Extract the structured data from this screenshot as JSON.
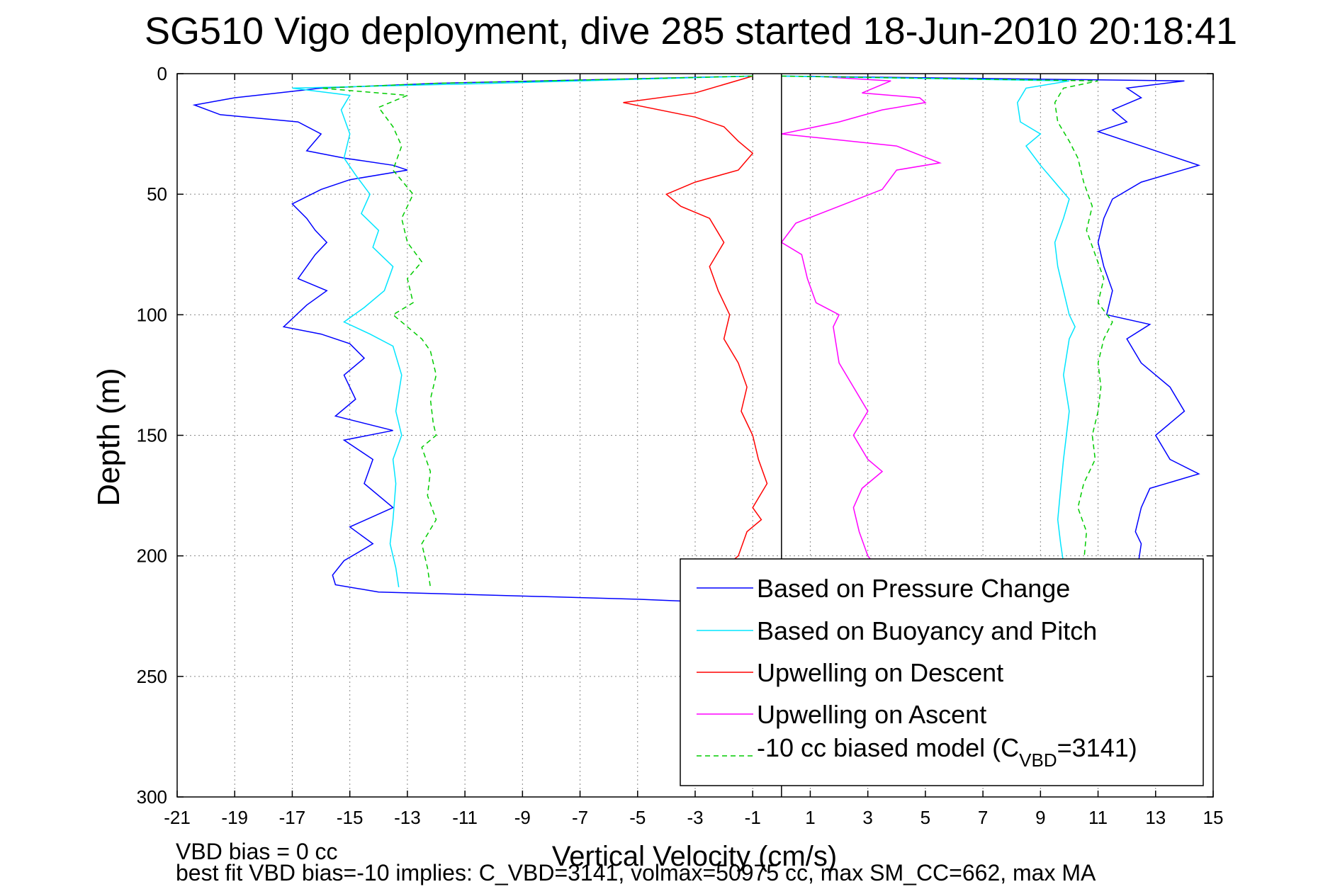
{
  "chart_data": {
    "type": "line",
    "title": "SG510 Vigo deployment, dive 285 started 18-Jun-2010 20:18:41",
    "xlabel": "Vertical Velocity (cm/s)",
    "ylabel": "Depth (m)",
    "xlim": [
      -21,
      15
    ],
    "ylim": [
      0,
      300
    ],
    "y_reversed": true,
    "grid": true,
    "legend_position": "bottom-right",
    "xticks": [
      -21,
      -19,
      -17,
      -15,
      -13,
      -11,
      -9,
      -7,
      -5,
      -3,
      -1,
      1,
      3,
      5,
      7,
      9,
      11,
      13,
      15
    ],
    "yticks": [
      0,
      50,
      100,
      150,
      200,
      250,
      300
    ],
    "vline_x": 0,
    "series": [
      {
        "name": "Based on Pressure Change",
        "color": "#0000ff",
        "dash": "solid",
        "points": [
          [
            -1,
            1
          ],
          [
            -12,
            4
          ],
          [
            -16,
            6
          ],
          [
            -19,
            10
          ],
          [
            -20.4,
            13
          ],
          [
            -19.5,
            17
          ],
          [
            -16.8,
            20
          ],
          [
            -16,
            25
          ],
          [
            -16.5,
            32
          ],
          [
            -15.2,
            35
          ],
          [
            -13.5,
            38
          ],
          [
            -13,
            40
          ],
          [
            -15,
            44
          ],
          [
            -16,
            48
          ],
          [
            -17,
            54
          ],
          [
            -16.5,
            60
          ],
          [
            -16.2,
            65
          ],
          [
            -15.8,
            70
          ],
          [
            -16.2,
            75
          ],
          [
            -16.8,
            85
          ],
          [
            -15.8,
            90
          ],
          [
            -16.5,
            96
          ],
          [
            -17.3,
            105
          ],
          [
            -16,
            108
          ],
          [
            -15,
            112
          ],
          [
            -14.5,
            118
          ],
          [
            -15.2,
            125
          ],
          [
            -14.8,
            135
          ],
          [
            -15.5,
            142
          ],
          [
            -13.5,
            148
          ],
          [
            -15.2,
            152
          ],
          [
            -14.2,
            160
          ],
          [
            -14.5,
            170
          ],
          [
            -13.5,
            180
          ],
          [
            -15,
            188
          ],
          [
            -14.2,
            195
          ],
          [
            -15.2,
            202
          ],
          [
            -15.6,
            208
          ],
          [
            -15.5,
            212
          ],
          [
            -14,
            215
          ],
          [
            -5,
            218
          ],
          [
            -3,
            219
          ]
        ]
      },
      {
        "name": "Based on Buoyancy and Pitch",
        "color": "#00e5ff",
        "dash": "solid",
        "points": [
          [
            -1,
            1
          ],
          [
            -10,
            4
          ],
          [
            -17,
            6
          ],
          [
            -15,
            9
          ],
          [
            -15.3,
            15
          ],
          [
            -15,
            25
          ],
          [
            -15.2,
            35
          ],
          [
            -14.8,
            42
          ],
          [
            -14.3,
            50
          ],
          [
            -14.6,
            58
          ],
          [
            -14,
            65
          ],
          [
            -14.2,
            72
          ],
          [
            -13.5,
            80
          ],
          [
            -13.8,
            90
          ],
          [
            -14.5,
            97
          ],
          [
            -15.2,
            103
          ],
          [
            -14.3,
            108
          ],
          [
            -13.5,
            113
          ],
          [
            -13.2,
            125
          ],
          [
            -13.4,
            140
          ],
          [
            -13.2,
            150
          ],
          [
            -13.5,
            160
          ],
          [
            -13.4,
            170
          ],
          [
            -13.5,
            185
          ],
          [
            -13.6,
            195
          ],
          [
            -13.4,
            205
          ],
          [
            -13.3,
            213
          ]
        ]
      },
      {
        "name": "Upwelling on Descent",
        "color": "#ff0000",
        "dash": "solid",
        "points": [
          [
            -1,
            1
          ],
          [
            -3,
            8
          ],
          [
            -5.5,
            12
          ],
          [
            -3,
            18
          ],
          [
            -2,
            22
          ],
          [
            -1.5,
            28
          ],
          [
            -1,
            33
          ],
          [
            -1.5,
            40
          ],
          [
            -3,
            45
          ],
          [
            -4,
            50
          ],
          [
            -3.5,
            55
          ],
          [
            -2.5,
            60
          ],
          [
            -2,
            70
          ],
          [
            -2.5,
            80
          ],
          [
            -2.2,
            90
          ],
          [
            -1.8,
            100
          ],
          [
            -2,
            110
          ],
          [
            -1.5,
            120
          ],
          [
            -1.2,
            130
          ],
          [
            -1.4,
            140
          ],
          [
            -1,
            150
          ],
          [
            -0.8,
            160
          ],
          [
            -0.5,
            170
          ],
          [
            -1,
            180
          ],
          [
            -0.7,
            185
          ],
          [
            -1.2,
            190
          ],
          [
            -1.5,
            200
          ],
          [
            -2,
            205
          ]
        ]
      },
      {
        "name": "Upwelling on Ascent",
        "color": "#ff00ff",
        "dash": "solid",
        "points": [
          [
            1,
            1
          ],
          [
            3.8,
            3
          ],
          [
            2.8,
            8
          ],
          [
            4.8,
            10
          ],
          [
            5,
            12
          ],
          [
            3.5,
            15
          ],
          [
            2,
            20
          ],
          [
            0,
            25
          ],
          [
            4,
            30
          ],
          [
            5.5,
            37
          ],
          [
            4,
            40
          ],
          [
            3.5,
            48
          ],
          [
            2,
            55
          ],
          [
            0.5,
            62
          ],
          [
            0,
            70
          ],
          [
            0.7,
            75
          ],
          [
            0.9,
            85
          ],
          [
            1.2,
            95
          ],
          [
            2,
            100
          ],
          [
            1.8,
            105
          ],
          [
            2,
            120
          ],
          [
            2.5,
            130
          ],
          [
            3,
            140
          ],
          [
            2.5,
            150
          ],
          [
            3,
            160
          ],
          [
            3.5,
            165
          ],
          [
            2.8,
            172
          ],
          [
            2.5,
            180
          ],
          [
            2.7,
            190
          ],
          [
            3,
            200
          ],
          [
            3.2,
            203
          ]
        ]
      },
      {
        "name": "-10 cc biased model (C_VBD=3141)",
        "color": "#00cc00",
        "dash": "dashed",
        "points": [
          [
            -1,
            1
          ],
          [
            -12,
            4
          ],
          [
            -16,
            6
          ],
          [
            -13,
            9
          ],
          [
            -14,
            14
          ],
          [
            -13.5,
            22
          ],
          [
            -13.2,
            30
          ],
          [
            -13.5,
            40
          ],
          [
            -12.8,
            50
          ],
          [
            -13.2,
            60
          ],
          [
            -13,
            70
          ],
          [
            -12.5,
            78
          ],
          [
            -13,
            85
          ],
          [
            -12.8,
            95
          ],
          [
            -13.5,
            100
          ],
          [
            -13,
            105
          ],
          [
            -12.5,
            110
          ],
          [
            -12.2,
            115
          ],
          [
            -12,
            125
          ],
          [
            -12.2,
            135
          ],
          [
            -12.1,
            145
          ],
          [
            -12,
            150
          ],
          [
            -12.5,
            155
          ],
          [
            -12.2,
            165
          ],
          [
            -12.3,
            175
          ],
          [
            -12,
            185
          ],
          [
            -12.5,
            195
          ],
          [
            -12.3,
            205
          ],
          [
            -12.2,
            213
          ]
        ]
      },
      {
        "name": "",
        "color": "#0000ff",
        "dash": "solid",
        "points": [
          [
            0,
            1
          ],
          [
            14,
            3
          ],
          [
            12,
            6
          ],
          [
            12.5,
            10
          ],
          [
            11.5,
            15
          ],
          [
            12,
            20
          ],
          [
            11,
            24
          ],
          [
            12.5,
            30
          ],
          [
            14.5,
            38
          ],
          [
            12.5,
            45
          ],
          [
            11.5,
            52
          ],
          [
            11.2,
            60
          ],
          [
            11,
            70
          ],
          [
            11.2,
            80
          ],
          [
            11.5,
            90
          ],
          [
            11.3,
            100
          ],
          [
            12.8,
            104
          ],
          [
            12,
            110
          ],
          [
            12.5,
            120
          ],
          [
            13.5,
            130
          ],
          [
            14,
            140
          ],
          [
            13,
            150
          ],
          [
            13.5,
            160
          ],
          [
            14.5,
            166
          ],
          [
            12.8,
            172
          ],
          [
            12.5,
            180
          ],
          [
            12.3,
            190
          ],
          [
            12.5,
            195
          ],
          [
            12.4,
            203
          ]
        ]
      },
      {
        "name": "",
        "color": "#00e5ff",
        "dash": "solid",
        "points": [
          [
            0,
            1
          ],
          [
            10,
            3
          ],
          [
            8.5,
            6
          ],
          [
            8.2,
            12
          ],
          [
            8.3,
            20
          ],
          [
            9,
            25
          ],
          [
            8.5,
            30
          ],
          [
            9,
            38
          ],
          [
            9.5,
            45
          ],
          [
            10,
            52
          ],
          [
            9.8,
            60
          ],
          [
            9.5,
            70
          ],
          [
            9.6,
            80
          ],
          [
            9.8,
            90
          ],
          [
            10,
            100
          ],
          [
            10.2,
            105
          ],
          [
            10,
            110
          ],
          [
            9.8,
            125
          ],
          [
            10,
            140
          ],
          [
            9.9,
            150
          ],
          [
            9.8,
            160
          ],
          [
            9.7,
            172
          ],
          [
            9.6,
            185
          ],
          [
            9.7,
            195
          ],
          [
            9.8,
            203
          ]
        ]
      },
      {
        "name": "",
        "color": "#00cc00",
        "dash": "dashed",
        "points": [
          [
            0,
            1
          ],
          [
            11,
            3
          ],
          [
            9.8,
            6
          ],
          [
            9.5,
            12
          ],
          [
            9.6,
            20
          ],
          [
            10,
            28
          ],
          [
            10.3,
            35
          ],
          [
            10.5,
            45
          ],
          [
            10.8,
            55
          ],
          [
            10.6,
            65
          ],
          [
            10.9,
            75
          ],
          [
            11.2,
            85
          ],
          [
            11,
            95
          ],
          [
            11.5,
            103
          ],
          [
            11.2,
            110
          ],
          [
            11,
            120
          ],
          [
            11.1,
            130
          ],
          [
            11,
            140
          ],
          [
            10.8,
            150
          ],
          [
            10.9,
            160
          ],
          [
            10.5,
            170
          ],
          [
            10.3,
            180
          ],
          [
            10.6,
            190
          ],
          [
            10.5,
            203
          ]
        ]
      }
    ]
  },
  "footer": {
    "line1": "VBD bias = 0 cc",
    "line2": "best fit VBD bias=-10 implies: C_VBD=3141, volmax=50975 cc, max SM_CC=662, max MA"
  },
  "legend": {
    "items": [
      {
        "label": "Based on Pressure Change",
        "color": "#0000ff",
        "dash": "solid"
      },
      {
        "label": "Based on Buoyancy and Pitch",
        "color": "#00e5ff",
        "dash": "solid"
      },
      {
        "label": "Upwelling on Descent",
        "color": "#ff0000",
        "dash": "solid"
      },
      {
        "label": "Upwelling on Ascent",
        "color": "#ff00ff",
        "dash": "solid"
      },
      {
        "label_prefix": "-10 cc biased model (C",
        "label_sub": "VBD",
        "label_suffix": "=3141)",
        "color": "#00cc00",
        "dash": "dashed"
      }
    ]
  }
}
